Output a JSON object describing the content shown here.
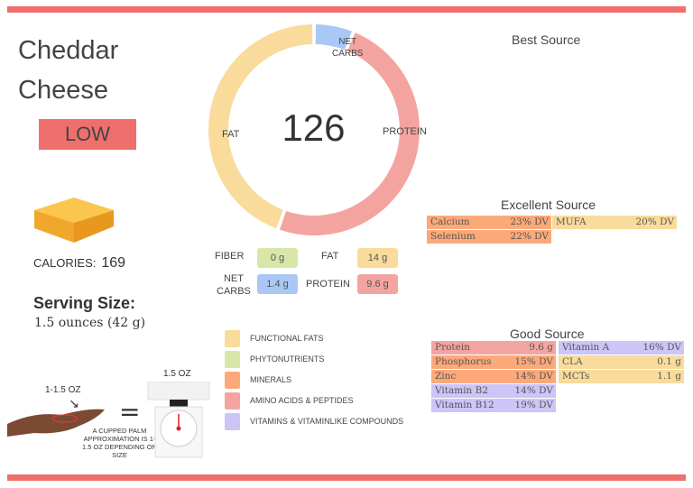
{
  "colors": {
    "accent": "#ef6f6c",
    "functional_fats": "#f9dc9b",
    "phytonutrients": "#d8e7a8",
    "minerals": "#fca97a",
    "amino_acids": "#f4a4a0",
    "vitamins": "#cdc4f7",
    "net_carbs": "#a9c8f5"
  },
  "food": {
    "title_line1": "Cheddar",
    "title_line2": "Cheese",
    "level": "LOW",
    "calories_label": "CALORIES:",
    "calories": "169",
    "serving_label": "Serving Size:",
    "serving_value": "1.5 ounces (42 g)"
  },
  "donut": {
    "center": "126",
    "labels": {
      "fat": "FAT",
      "protein": "PROTEIN",
      "net_carbs_1": "NET",
      "net_carbs_2": "CARBS"
    },
    "segments": [
      {
        "name": "net_carbs",
        "color": "#a9c8f5",
        "degrees": 22
      },
      {
        "name": "protein",
        "color": "#f4a4a0",
        "degrees": 178
      },
      {
        "name": "fat",
        "color": "#f9dc9b",
        "degrees": 160
      }
    ]
  },
  "macros": {
    "fiber_label": "FIBER",
    "fiber": "0 g",
    "fat_label": "FAT",
    "fat": "14 g",
    "net_carbs_label_1": "NET",
    "net_carbs_label_2": "CARBS",
    "net_carbs": "1.4 g",
    "protein_label": "PROTEIN",
    "protein": "9.6 g"
  },
  "legend": [
    {
      "label": "FUNCTIONAL  FATS",
      "color": "#f9dc9b"
    },
    {
      "label": "PHYTONUTRIENTS",
      "color": "#d8e7a8"
    },
    {
      "label": "MINERALS",
      "color": "#fca97a"
    },
    {
      "label": "AMINO ACIDS & PEPTIDES",
      "color": "#f4a4a0"
    },
    {
      "label": "VITAMINS & VITAMINLIKE COMPOUNDS",
      "color": "#cdc4f7"
    }
  ],
  "illustration": {
    "palm_label": "1-1.5 OZ",
    "scale_label": "1.5 OZ",
    "equals": "=",
    "note": "A CUPPED PALM APPROXIMATION IS 1-1.5 OZ DEPENDING ON SIZE"
  },
  "best_source": {
    "title": "Best Source"
  },
  "excellent_source": {
    "title": "Excellent Source",
    "left": [
      {
        "name": "Calcium",
        "value": "23% DV",
        "color": "#fca97a"
      },
      {
        "name": "Selenium",
        "value": "22% DV",
        "color": "#fca97a"
      }
    ],
    "right": [
      {
        "name": "MUFA",
        "value": "20% DV",
        "color": "#f9dc9b"
      }
    ]
  },
  "good_source": {
    "title": "Good Source",
    "left": [
      {
        "name": "Protein",
        "value": "9.6 g",
        "color": "#f4a4a0"
      },
      {
        "name": "Phosphorus",
        "value": "15% DV",
        "color": "#fca97a"
      },
      {
        "name": "Zinc",
        "value": "14% DV",
        "color": "#fca97a"
      },
      {
        "name": "Vitamin B2",
        "value": "14% DV",
        "color": "#cdc4f7"
      },
      {
        "name": "Vitamin B12",
        "value": "19% DV",
        "color": "#cdc4f7"
      }
    ],
    "right": [
      {
        "name": "Vitamin A",
        "value": "16% DV",
        "color": "#cdc4f7"
      },
      {
        "name": "CLA",
        "value": "0.1 g",
        "color": "#f9dc9b"
      },
      {
        "name": "MCTs",
        "value": "1.1 g",
        "color": "#f9dc9b"
      }
    ]
  }
}
